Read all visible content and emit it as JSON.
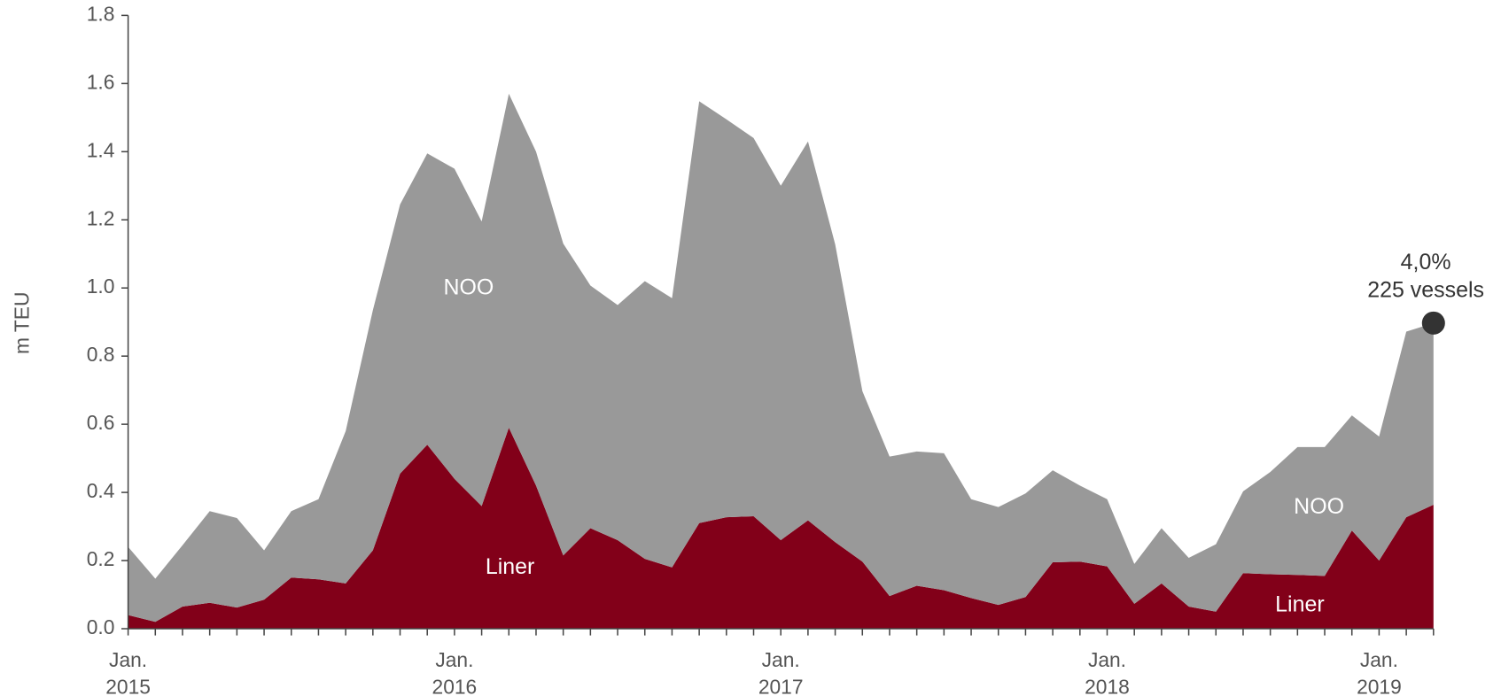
{
  "chart_data": {
    "type": "stacked_area",
    "y_label": "m TEU",
    "categories": [
      "Jan. 2015",
      null,
      null,
      null,
      null,
      null,
      null,
      null,
      null,
      null,
      null,
      null,
      "Jan. 2016",
      null,
      null,
      null,
      null,
      null,
      null,
      null,
      null,
      null,
      null,
      null,
      "Jan. 2017",
      null,
      null,
      null,
      null,
      null,
      null,
      null,
      null,
      null,
      null,
      null,
      "Jan. 2018",
      null,
      null,
      null,
      null,
      null,
      null,
      null,
      null,
      null,
      "Jan. 2019",
      null,
      null
    ],
    "series": [
      {
        "name": "Liner",
        "color": "#820019",
        "values": [
          0.04,
          0.02,
          0.065,
          0.076,
          0.062,
          0.085,
          0.15,
          0.145,
          0.133,
          0.23,
          0.455,
          0.54,
          0.44,
          0.36,
          0.59,
          0.42,
          0.215,
          0.295,
          0.26,
          0.205,
          0.18,
          0.31,
          0.327,
          0.33,
          0.26,
          0.318,
          0.254,
          0.197,
          0.096,
          0.126,
          0.113,
          0.09,
          0.07,
          0.093,
          0.195,
          0.197,
          0.183,
          0.073,
          0.133,
          0.065,
          0.05,
          0.163,
          0.16,
          0.158,
          0.155,
          0.288,
          0.2,
          0.327,
          0.364
        ]
      },
      {
        "name": "NOO",
        "color": "#999999",
        "values": [
          0.2,
          0.127,
          0.18,
          0.269,
          0.263,
          0.145,
          0.195,
          0.235,
          0.447,
          0.705,
          0.79,
          0.855,
          0.91,
          0.835,
          0.98,
          0.98,
          0.915,
          0.712,
          0.69,
          0.815,
          0.79,
          1.238,
          1.168,
          1.11,
          1.04,
          1.112,
          0.874,
          0.5,
          0.409,
          0.394,
          0.402,
          0.29,
          0.287,
          0.304,
          0.27,
          0.223,
          0.197,
          0.117,
          0.162,
          0.143,
          0.198,
          0.24,
          0.3,
          0.375,
          0.378,
          0.338,
          0.364,
          0.545,
          0.533
        ]
      }
    ],
    "annotations": [
      "4,0%",
      "225 vessels"
    ],
    "ylim": [
      0,
      1.8
    ],
    "yticks": [
      {
        "value": 0,
        "label": "0.0"
      },
      0.2,
      0.4,
      0.6,
      0.8,
      {
        "value": 1,
        "label": "1.0"
      },
      1.2,
      1.4,
      1.6,
      1.8
    ],
    "grid": false
  }
}
